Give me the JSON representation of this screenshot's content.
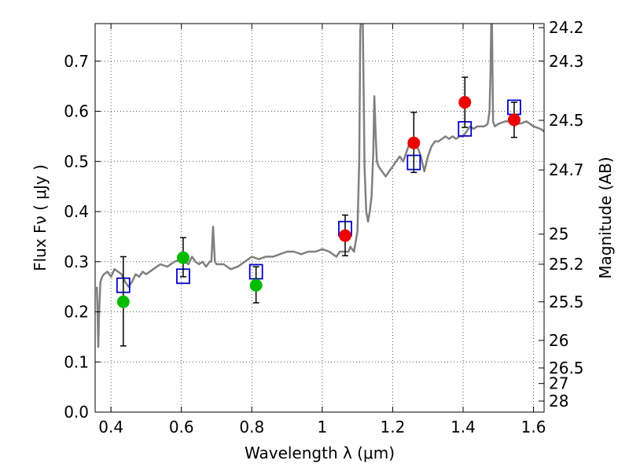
{
  "chart_data": {
    "type": "scatter",
    "xlabel": "Wavelength  λ (μm)",
    "ylabel": "Flux  Fν  ( μJy )",
    "ylabel_right": "Magnitude (AB)",
    "xlim": [
      0.355,
      1.63
    ],
    "ylim": [
      0.0,
      0.775
    ],
    "grid": true,
    "grid_style": "dotted",
    "x_ticks": [
      0.4,
      0.6,
      0.8,
      1.0,
      1.2,
      1.4,
      1.6
    ],
    "x_tick_labels": [
      "0.4",
      "0.6",
      "0.8",
      "1",
      "1.2",
      "1.4",
      "1.6"
    ],
    "y_ticks": [
      0.0,
      0.1,
      0.2,
      0.3,
      0.4,
      0.5,
      0.6,
      0.7
    ],
    "y_tick_labels": [
      "0.0",
      "0.1",
      "0.2",
      "0.3",
      "0.4",
      "0.5",
      "0.6",
      "0.7"
    ],
    "right_ticks": [
      {
        "flux": 0.767,
        "label": "24.2"
      },
      {
        "flux": 0.7,
        "label": "24.3"
      },
      {
        "flux": 0.582,
        "label": "24.5"
      },
      {
        "flux": 0.483,
        "label": "24.7"
      },
      {
        "flux": 0.355,
        "label": "25"
      },
      {
        "flux": 0.295,
        "label": "25.2"
      },
      {
        "flux": 0.22,
        "label": "25.5"
      },
      {
        "flux": 0.143,
        "label": "26"
      },
      {
        "flux": 0.088,
        "label": "26.5"
      },
      {
        "flux": 0.057,
        "label": "27"
      },
      {
        "flux": 0.022,
        "label": "28"
      }
    ],
    "colors": {
      "spectrum": "#808080",
      "measured_optical": "#00bb00",
      "measured_nir": "#ee0000",
      "model": "#0000cc",
      "error_bar": "#000000",
      "grid": "#555555"
    },
    "series": [
      {
        "kind": "line",
        "points": [
          [
            0.36,
            0.25
          ],
          [
            0.362,
            0.2
          ],
          [
            0.364,
            0.13
          ],
          [
            0.366,
            0.19
          ],
          [
            0.37,
            0.26
          ],
          [
            0.375,
            0.27
          ],
          [
            0.38,
            0.275
          ],
          [
            0.39,
            0.28
          ],
          [
            0.4,
            0.27
          ],
          [
            0.41,
            0.285
          ],
          [
            0.42,
            0.28
          ],
          [
            0.43,
            0.275
          ],
          [
            0.44,
            0.26
          ],
          [
            0.45,
            0.25
          ],
          [
            0.46,
            0.26
          ],
          [
            0.47,
            0.275
          ],
          [
            0.48,
            0.27
          ],
          [
            0.49,
            0.28
          ],
          [
            0.5,
            0.275
          ],
          [
            0.52,
            0.285
          ],
          [
            0.54,
            0.295
          ],
          [
            0.56,
            0.29
          ],
          [
            0.58,
            0.3
          ],
          [
            0.6,
            0.305
          ],
          [
            0.61,
            0.3
          ],
          [
            0.62,
            0.295
          ],
          [
            0.63,
            0.31
          ],
          [
            0.64,
            0.3
          ],
          [
            0.65,
            0.295
          ],
          [
            0.66,
            0.3
          ],
          [
            0.67,
            0.29
          ],
          [
            0.68,
            0.3
          ],
          [
            0.685,
            0.3
          ],
          [
            0.69,
            0.37
          ],
          [
            0.695,
            0.3
          ],
          [
            0.7,
            0.295
          ],
          [
            0.72,
            0.295
          ],
          [
            0.74,
            0.285
          ],
          [
            0.76,
            0.29
          ],
          [
            0.78,
            0.3
          ],
          [
            0.8,
            0.31
          ],
          [
            0.82,
            0.305
          ],
          [
            0.84,
            0.31
          ],
          [
            0.86,
            0.31
          ],
          [
            0.88,
            0.315
          ],
          [
            0.9,
            0.32
          ],
          [
            0.92,
            0.32
          ],
          [
            0.94,
            0.315
          ],
          [
            0.96,
            0.32
          ],
          [
            0.98,
            0.32
          ],
          [
            1.0,
            0.325
          ],
          [
            1.02,
            0.32
          ],
          [
            1.04,
            0.31
          ],
          [
            1.05,
            0.32
          ],
          [
            1.06,
            0.32
          ],
          [
            1.07,
            0.32
          ],
          [
            1.075,
            0.32
          ],
          [
            1.08,
            0.33
          ],
          [
            1.09,
            0.32
          ],
          [
            1.1,
            0.36
          ],
          [
            1.105,
            0.5
          ],
          [
            1.108,
            0.76
          ],
          [
            1.11,
            0.78
          ],
          [
            1.115,
            0.78
          ],
          [
            1.118,
            0.62
          ],
          [
            1.12,
            0.49
          ],
          [
            1.125,
            0.4
          ],
          [
            1.13,
            0.38
          ],
          [
            1.135,
            0.4
          ],
          [
            1.14,
            0.43
          ],
          [
            1.145,
            0.52
          ],
          [
            1.148,
            0.63
          ],
          [
            1.152,
            0.55
          ],
          [
            1.155,
            0.5
          ],
          [
            1.16,
            0.49
          ],
          [
            1.17,
            0.48
          ],
          [
            1.18,
            0.47
          ],
          [
            1.19,
            0.48
          ],
          [
            1.2,
            0.49
          ],
          [
            1.21,
            0.5
          ],
          [
            1.22,
            0.51
          ],
          [
            1.23,
            0.5
          ],
          [
            1.24,
            0.52
          ],
          [
            1.25,
            0.54
          ],
          [
            1.26,
            0.53
          ],
          [
            1.27,
            0.53
          ],
          [
            1.28,
            0.51
          ],
          [
            1.29,
            0.48
          ],
          [
            1.3,
            0.51
          ],
          [
            1.31,
            0.53
          ],
          [
            1.32,
            0.54
          ],
          [
            1.33,
            0.54
          ],
          [
            1.34,
            0.545
          ],
          [
            1.35,
            0.55
          ],
          [
            1.36,
            0.545
          ],
          [
            1.37,
            0.55
          ],
          [
            1.38,
            0.545
          ],
          [
            1.39,
            0.55
          ],
          [
            1.4,
            0.55
          ],
          [
            1.41,
            0.56
          ],
          [
            1.42,
            0.57
          ],
          [
            1.43,
            0.565
          ],
          [
            1.44,
            0.57
          ],
          [
            1.45,
            0.57
          ],
          [
            1.46,
            0.57
          ],
          [
            1.47,
            0.575
          ],
          [
            1.475,
            0.6
          ],
          [
            1.478,
            0.68
          ],
          [
            1.48,
            0.78
          ],
          [
            1.482,
            0.78
          ],
          [
            1.485,
            0.58
          ],
          [
            1.49,
            0.57
          ],
          [
            1.5,
            0.575
          ],
          [
            1.52,
            0.58
          ],
          [
            1.54,
            0.58
          ],
          [
            1.56,
            0.575
          ],
          [
            1.58,
            0.58
          ],
          [
            1.6,
            0.57
          ],
          [
            1.62,
            0.565
          ],
          [
            1.63,
            0.56
          ]
        ]
      },
      {
        "kind": "points",
        "points": [
          {
            "x": 0.435,
            "y": 0.22,
            "yerr": [
              0.132,
              0.31
            ]
          },
          {
            "x": 0.605,
            "y": 0.308,
            "yerr": [
              0.27,
              0.348
            ]
          },
          {
            "x": 0.812,
            "y": 0.253,
            "yerr": [
              0.218,
              0.29
            ]
          }
        ]
      },
      {
        "kind": "points",
        "points": [
          {
            "x": 1.065,
            "y": 0.352,
            "yerr": [
              0.312,
              0.393
            ]
          },
          {
            "x": 1.26,
            "y": 0.537,
            "yerr": [
              0.478,
              0.598
            ]
          },
          {
            "x": 1.405,
            "y": 0.618,
            "yerr": [
              0.568,
              0.668
            ]
          },
          {
            "x": 1.545,
            "y": 0.583,
            "yerr": [
              0.548,
              0.618
            ]
          }
        ]
      },
      {
        "kind": "squares",
        "points": [
          {
            "x": 0.435,
            "y": 0.253
          },
          {
            "x": 0.605,
            "y": 0.271
          },
          {
            "x": 0.812,
            "y": 0.28
          },
          {
            "x": 1.065,
            "y": 0.366
          },
          {
            "x": 1.26,
            "y": 0.498
          },
          {
            "x": 1.405,
            "y": 0.565
          },
          {
            "x": 1.545,
            "y": 0.608
          }
        ]
      }
    ]
  }
}
